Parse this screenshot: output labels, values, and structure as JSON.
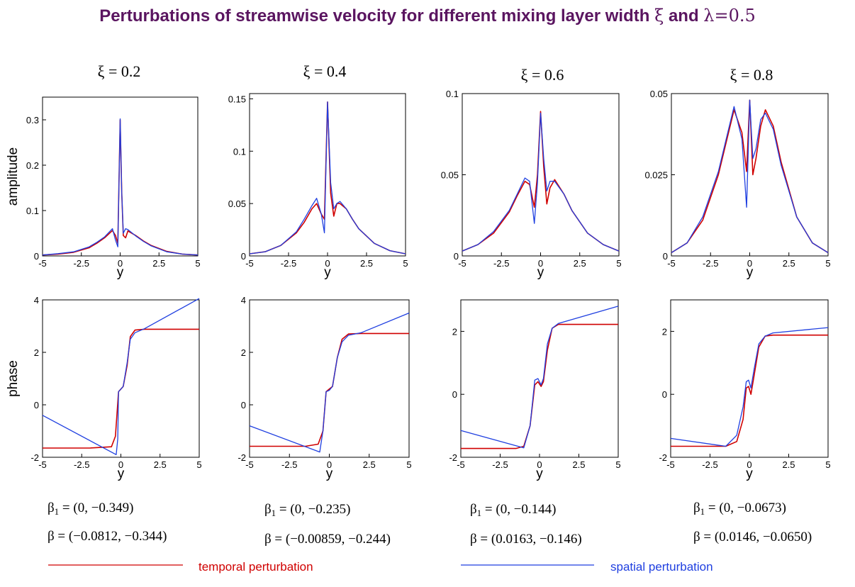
{
  "title_text": "Perturbations of streamwise velocity for different mixing layer width",
  "title_xi": "ξ",
  "title_and": "and",
  "title_lambda": "λ=0.5",
  "colors": {
    "title": "#5a1560",
    "temporal": "#d00000",
    "spatial": "#1f3fe0"
  },
  "legend": {
    "temporal": "temporal perturbation",
    "spatial": "spatial perturbation"
  },
  "chart_data": [
    {
      "type": "line",
      "panel_title": "ξ = 0.2",
      "row": "amplitude",
      "ylabel": "amplitude",
      "xlabel": "y",
      "xlim": [
        -5,
        5
      ],
      "ylim": [
        0,
        0.35
      ],
      "xticks": [
        "-5",
        "-2.5",
        "0",
        "2.5",
        "5"
      ],
      "yticks": [
        0,
        0.1,
        0.2,
        0.3
      ],
      "ytick_labels": [
        "0",
        "0.1",
        "0.2",
        "0.3"
      ],
      "series": [
        {
          "name": "temporal perturbation",
          "x": [
            -5,
            -4,
            -3,
            -2,
            -1.5,
            -1,
            -0.5,
            -0.3,
            -0.15,
            0,
            0.1,
            0.2,
            0.35,
            0.5,
            1,
            1.5,
            2,
            3,
            4,
            5
          ],
          "y": [
            0.002,
            0.004,
            0.008,
            0.018,
            0.028,
            0.04,
            0.056,
            0.045,
            0.028,
            0.3,
            0.14,
            0.045,
            0.04,
            0.055,
            0.045,
            0.033,
            0.023,
            0.01,
            0.004,
            0.002
          ]
        },
        {
          "name": "spatial perturbation",
          "x": [
            -5,
            -4,
            -3,
            -2,
            -1.5,
            -1,
            -0.5,
            -0.3,
            -0.15,
            0,
            0.1,
            0.2,
            0.35,
            0.5,
            1,
            1.5,
            2,
            3,
            4,
            5
          ],
          "y": [
            0.002,
            0.005,
            0.009,
            0.02,
            0.03,
            0.042,
            0.06,
            0.035,
            0.02,
            0.302,
            0.14,
            0.05,
            0.06,
            0.058,
            0.044,
            0.032,
            0.022,
            0.009,
            0.004,
            0.002
          ]
        }
      ]
    },
    {
      "type": "line",
      "panel_title": "ξ = 0.4",
      "row": "amplitude",
      "ylabel": "",
      "xlabel": "y",
      "xlim": [
        -5,
        5
      ],
      "ylim": [
        0,
        0.155
      ],
      "xticks": [
        "-5",
        "-2.5",
        "0",
        "2.5",
        "5"
      ],
      "yticks": [
        0,
        0.05,
        0.1,
        0.15
      ],
      "ytick_labels": [
        "0",
        "0.05",
        "0.1",
        "0.15"
      ],
      "series": [
        {
          "name": "temporal perturbation",
          "x": [
            -5,
            -4,
            -3,
            -2,
            -1.5,
            -1,
            -0.7,
            -0.4,
            -0.2,
            0,
            0.2,
            0.4,
            0.6,
            0.8,
            1.2,
            1.6,
            2,
            3,
            4,
            5
          ],
          "y": [
            0.002,
            0.004,
            0.01,
            0.022,
            0.032,
            0.045,
            0.05,
            0.04,
            0.035,
            0.147,
            0.06,
            0.038,
            0.05,
            0.05,
            0.045,
            0.035,
            0.026,
            0.012,
            0.005,
            0.002
          ]
        },
        {
          "name": "spatial perturbation",
          "x": [
            -5,
            -4,
            -3,
            -2,
            -1.5,
            -1,
            -0.7,
            -0.4,
            -0.2,
            0,
            0.2,
            0.4,
            0.6,
            0.8,
            1.2,
            1.6,
            2,
            3,
            4,
            5
          ],
          "y": [
            0.002,
            0.004,
            0.01,
            0.023,
            0.035,
            0.048,
            0.055,
            0.04,
            0.022,
            0.147,
            0.07,
            0.045,
            0.05,
            0.052,
            0.045,
            0.035,
            0.026,
            0.012,
            0.005,
            0.002
          ]
        }
      ]
    },
    {
      "type": "line",
      "panel_title": "ξ = 0.6",
      "row": "amplitude",
      "ylabel": "",
      "xlabel": "y",
      "xlim": [
        -5,
        5
      ],
      "ylim": [
        0,
        0.1
      ],
      "xticks": [
        "-5",
        "-2.5",
        "0",
        "2.5",
        "5"
      ],
      "yticks": [
        0,
        0.05,
        0.1
      ],
      "ytick_labels": [
        "0",
        "0.05",
        "0.1"
      ],
      "series": [
        {
          "name": "temporal perturbation",
          "x": [
            -5,
            -4,
            -3,
            -2,
            -1.5,
            -1,
            -0.7,
            -0.4,
            -0.2,
            0,
            0.2,
            0.4,
            0.6,
            0.9,
            1.5,
            2,
            3,
            4,
            5
          ],
          "y": [
            0.003,
            0.007,
            0.014,
            0.027,
            0.037,
            0.046,
            0.044,
            0.03,
            0.05,
            0.089,
            0.055,
            0.032,
            0.042,
            0.047,
            0.038,
            0.028,
            0.014,
            0.007,
            0.003
          ]
        },
        {
          "name": "spatial perturbation",
          "x": [
            -5,
            -4,
            -3,
            -2,
            -1.5,
            -1,
            -0.7,
            -0.4,
            -0.2,
            0,
            0.2,
            0.4,
            0.6,
            0.9,
            1.5,
            2,
            3,
            4,
            5
          ],
          "y": [
            0.003,
            0.007,
            0.015,
            0.028,
            0.038,
            0.048,
            0.046,
            0.02,
            0.045,
            0.088,
            0.06,
            0.04,
            0.046,
            0.046,
            0.038,
            0.028,
            0.014,
            0.007,
            0.003
          ]
        }
      ]
    },
    {
      "type": "line",
      "panel_title": "ξ = 0.8",
      "row": "amplitude",
      "ylabel": "",
      "xlabel": "y",
      "xlim": [
        -5,
        5
      ],
      "ylim": [
        0,
        0.05
      ],
      "xticks": [
        "-5",
        "-2.5",
        "0",
        "2.5",
        "5"
      ],
      "yticks": [
        0,
        0.025,
        0.05
      ],
      "ytick_labels": [
        "0",
        "0.025",
        "0.05"
      ],
      "series": [
        {
          "name": "temporal perturbation",
          "x": [
            -5,
            -4,
            -3,
            -2,
            -1.5,
            -1,
            -0.5,
            -0.2,
            0,
            0.2,
            0.4,
            0.7,
            1,
            1.5,
            2,
            3,
            4,
            5
          ],
          "y": [
            0.001,
            0.004,
            0.011,
            0.025,
            0.035,
            0.045,
            0.038,
            0.026,
            0.048,
            0.025,
            0.03,
            0.04,
            0.045,
            0.04,
            0.029,
            0.012,
            0.004,
            0.001
          ]
        },
        {
          "name": "spatial perturbation",
          "x": [
            -5,
            -4,
            -3,
            -2,
            -1.5,
            -1,
            -0.5,
            -0.2,
            0,
            0.2,
            0.4,
            0.7,
            1,
            1.5,
            2,
            3,
            4,
            5
          ],
          "y": [
            0.001,
            0.004,
            0.012,
            0.026,
            0.036,
            0.046,
            0.036,
            0.015,
            0.048,
            0.03,
            0.033,
            0.042,
            0.044,
            0.039,
            0.028,
            0.012,
            0.004,
            0.001
          ]
        }
      ]
    },
    {
      "type": "line",
      "row": "phase",
      "ylabel": "phase",
      "xlabel": "y",
      "xlim": [
        -5,
        5
      ],
      "ylim": [
        -2,
        4
      ],
      "xticks": [
        "-5",
        "-2.5",
        "0",
        "2.5",
        "5"
      ],
      "yticks": [
        -2,
        0,
        2,
        4
      ],
      "ytick_labels": [
        "-2",
        "0",
        "2",
        "4"
      ],
      "series": [
        {
          "name": "temporal perturbation",
          "x": [
            -5,
            -2,
            -0.6,
            -0.35,
            -0.15,
            0,
            0.15,
            0.4,
            0.6,
            0.9,
            1.5,
            5
          ],
          "y": [
            -1.65,
            -1.65,
            -1.6,
            -1.2,
            0.5,
            0.6,
            0.7,
            1.5,
            2.6,
            2.85,
            2.88,
            2.88
          ]
        },
        {
          "name": "spatial perturbation",
          "x": [
            -5,
            -0.3,
            -0.2,
            -0.15,
            0,
            0.15,
            0.4,
            0.6,
            0.9,
            1.5,
            5
          ],
          "y": [
            -0.4,
            -1.9,
            -1.3,
            0.5,
            0.6,
            0.7,
            1.6,
            2.5,
            2.75,
            2.9,
            4.05
          ]
        }
      ]
    },
    {
      "type": "line",
      "row": "phase",
      "ylabel": "",
      "xlabel": "y",
      "xlim": [
        -5,
        5
      ],
      "ylim": [
        -2,
        4
      ],
      "xticks": [
        "-5",
        "-2.5",
        "0",
        "2.5",
        "5"
      ],
      "yticks": [
        -2,
        0,
        2,
        4
      ],
      "ytick_labels": [
        "-2",
        "0",
        "2",
        "4"
      ],
      "series": [
        {
          "name": "temporal perturbation",
          "x": [
            -5,
            -1.5,
            -0.7,
            -0.4,
            -0.2,
            0,
            0.2,
            0.5,
            0.8,
            1.2,
            2,
            5
          ],
          "y": [
            -1.58,
            -1.58,
            -1.5,
            -1.0,
            0.5,
            0.6,
            0.7,
            1.8,
            2.5,
            2.7,
            2.72,
            2.72
          ]
        },
        {
          "name": "spatial perturbation",
          "x": [
            -5,
            -0.6,
            -0.4,
            -0.2,
            0,
            0.2,
            0.5,
            0.8,
            1.2,
            2,
            5
          ],
          "y": [
            -0.8,
            -1.8,
            -1.0,
            0.5,
            0.55,
            0.7,
            1.8,
            2.4,
            2.65,
            2.75,
            3.5
          ]
        }
      ]
    },
    {
      "type": "line",
      "row": "phase",
      "ylabel": "",
      "xlabel": "y",
      "xlim": [
        -5,
        5
      ],
      "ylim": [
        -2,
        3
      ],
      "xticks": [
        "-5",
        "-2.5",
        "0",
        "2.5",
        "5"
      ],
      "yticks": [
        -2,
        0,
        2
      ],
      "ytick_labels": [
        "-2",
        "0",
        "2"
      ],
      "series": [
        {
          "name": "temporal perturbation",
          "x": [
            -5,
            -1.5,
            -1,
            -0.6,
            -0.3,
            -0.1,
            0.1,
            0.25,
            0.5,
            0.8,
            1.2,
            5
          ],
          "y": [
            -1.72,
            -1.72,
            -1.65,
            -1.0,
            0.3,
            0.4,
            0.25,
            0.4,
            1.4,
            2.1,
            2.22,
            2.22
          ]
        },
        {
          "name": "spatial perturbation",
          "x": [
            -5,
            -1,
            -0.6,
            -0.3,
            -0.1,
            0.1,
            0.25,
            0.5,
            0.8,
            1.2,
            5
          ],
          "y": [
            -1.15,
            -1.7,
            -1.0,
            0.45,
            0.5,
            0.3,
            0.5,
            1.6,
            2.1,
            2.25,
            2.8
          ]
        }
      ]
    },
    {
      "type": "line",
      "row": "phase",
      "ylabel": "",
      "xlabel": "y",
      "xlim": [
        -5,
        5
      ],
      "ylim": [
        -2,
        3
      ],
      "xticks": [
        "-5",
        "-2.5",
        "0",
        "2.5",
        "5"
      ],
      "yticks": [
        -2,
        0,
        2
      ],
      "ytick_labels": [
        "-2",
        "0",
        "2"
      ],
      "series": [
        {
          "name": "temporal perturbation",
          "x": [
            -5,
            -1.5,
            -0.8,
            -0.4,
            -0.2,
            -0.05,
            0.1,
            0.3,
            0.6,
            1,
            1.5,
            5
          ],
          "y": [
            -1.65,
            -1.65,
            -1.5,
            -0.8,
            0.2,
            0.25,
            0.0,
            0.6,
            1.5,
            1.85,
            1.88,
            1.88
          ]
        },
        {
          "name": "spatial perturbation",
          "x": [
            -5,
            -1.5,
            -0.8,
            -0.4,
            -0.2,
            -0.05,
            0.1,
            0.3,
            0.6,
            1,
            1.5,
            5
          ],
          "y": [
            -1.4,
            -1.65,
            -1.3,
            -0.4,
            0.4,
            0.45,
            0.2,
            0.8,
            1.6,
            1.85,
            1.95,
            2.12
          ]
        }
      ]
    }
  ],
  "beta1": [
    "(0, −0.349)",
    "(0, −0.235)",
    "(0, −0.144)",
    "(0, −0.0673)"
  ],
  "beta": [
    "(−0.0812, −0.344)",
    "(−0.00859, −0.244)",
    "(0.0163, −0.146)",
    "(0.0146, −0.0650)"
  ]
}
